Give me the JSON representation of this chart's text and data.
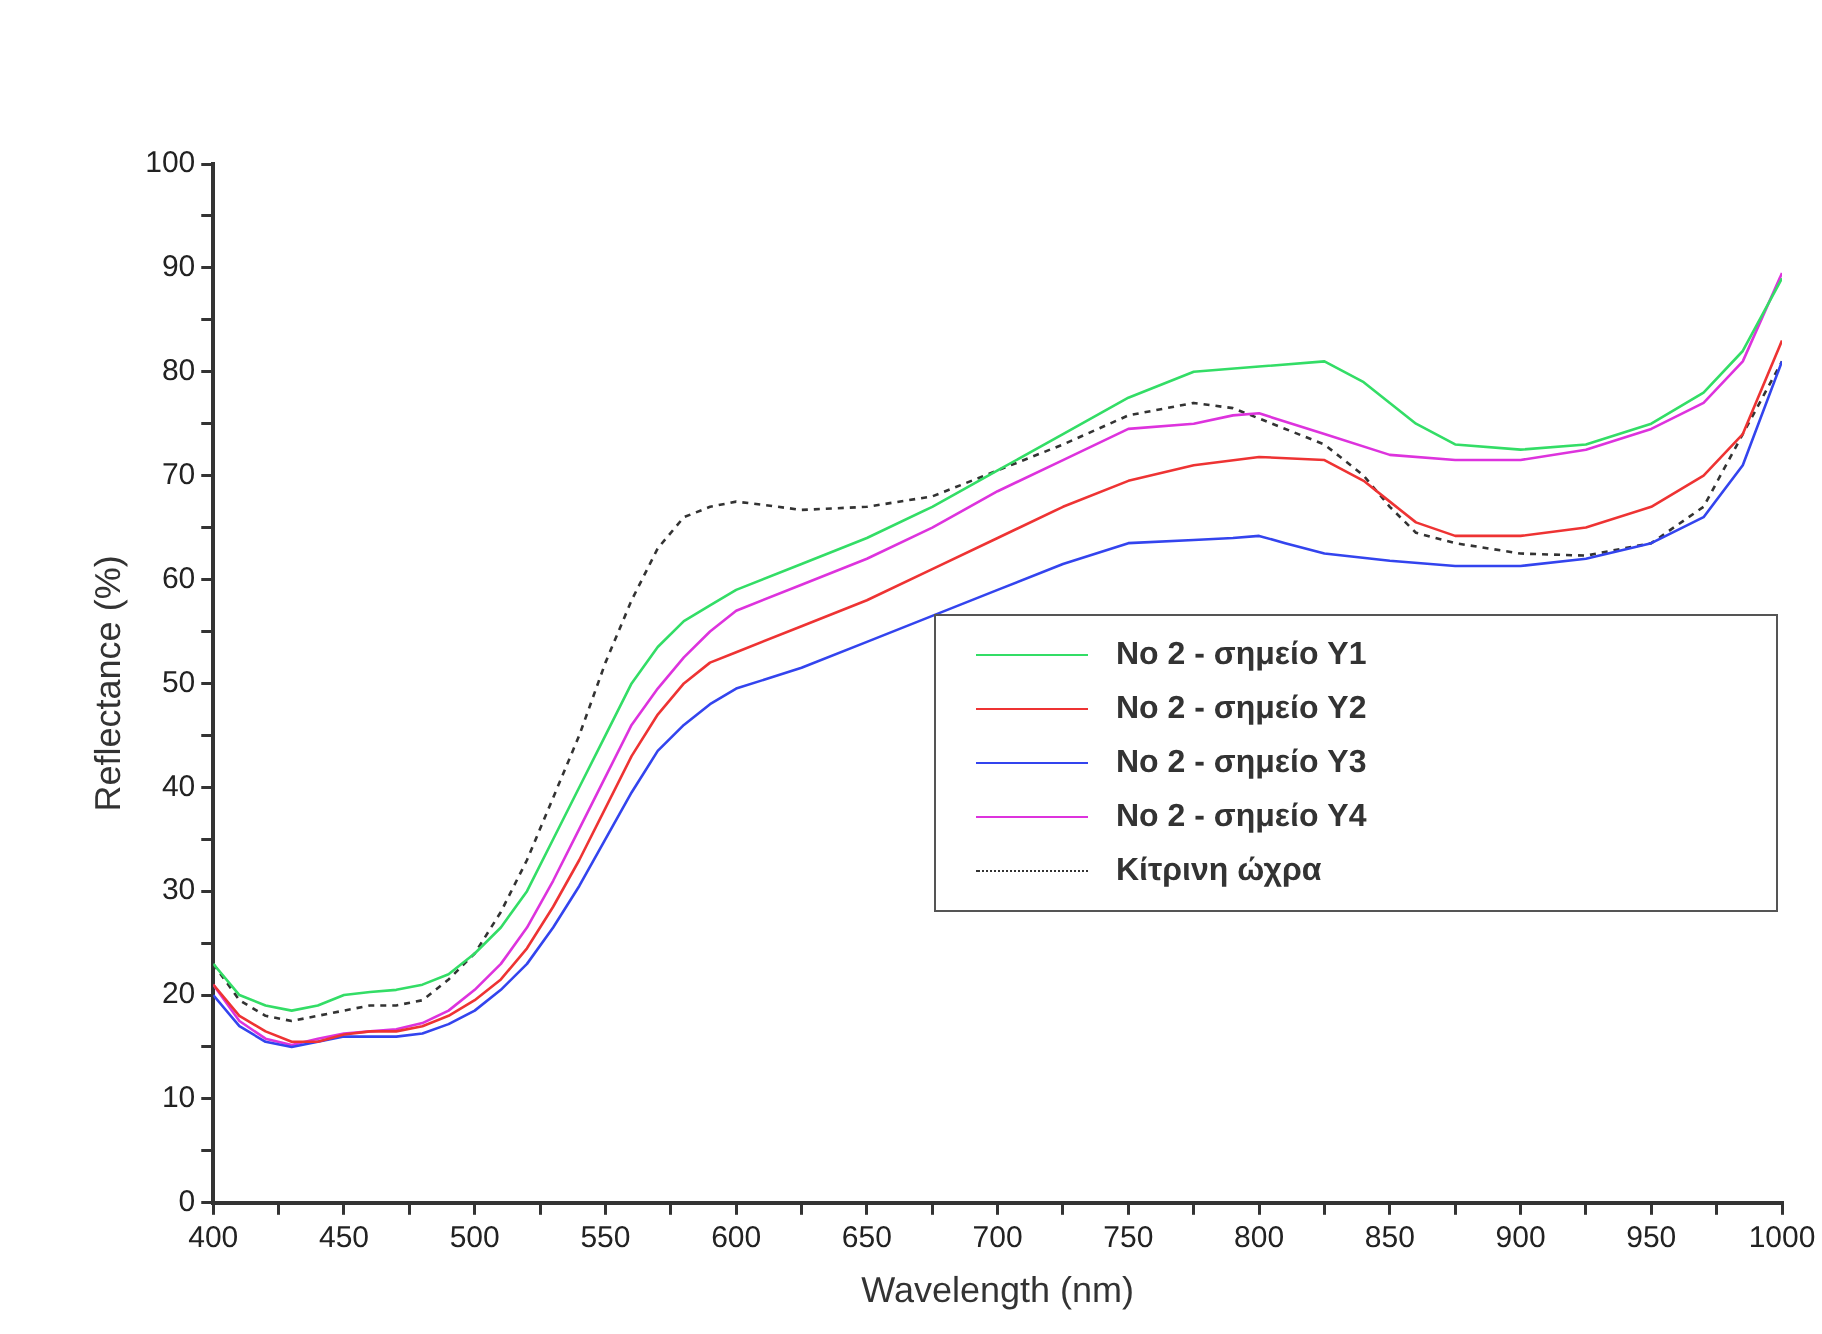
{
  "chart_data": {
    "type": "line",
    "xlabel": "Wavelength (nm)",
    "ylabel": "Reflectance (%)",
    "xlim": [
      400,
      1000
    ],
    "ylim": [
      0,
      100
    ],
    "xticks": [
      400,
      {
        "value": 425,
        "label": null
      },
      450,
      {
        "value": 475,
        "label": null
      },
      500,
      {
        "value": 525,
        "label": null
      },
      550,
      {
        "value": 575,
        "label": null
      },
      600,
      {
        "value": 625,
        "label": null
      },
      650,
      {
        "value": 675,
        "label": null
      },
      700,
      {
        "value": 725,
        "label": null
      },
      750,
      {
        "value": 775,
        "label": null
      },
      800,
      {
        "value": 825,
        "label": null
      },
      850,
      {
        "value": 875,
        "label": null
      },
      900,
      {
        "value": 925,
        "label": null
      },
      950,
      {
        "value": 975,
        "label": null
      },
      1000
    ],
    "yticks": [
      0,
      {
        "value": 5,
        "label": null
      },
      10,
      {
        "value": 15,
        "label": null
      },
      20,
      {
        "value": 25,
        "label": null
      },
      30,
      {
        "value": 35,
        "label": null
      },
      40,
      {
        "value": 45,
        "label": null
      },
      50,
      {
        "value": 55,
        "label": null
      },
      60,
      {
        "value": 65,
        "label": null
      },
      70,
      {
        "value": 75,
        "label": null
      },
      80,
      {
        "value": 85,
        "label": null
      },
      90,
      {
        "value": 95,
        "label": null
      },
      100
    ],
    "grid": false,
    "legend": "right",
    "marker": "none",
    "series": [
      {
        "name": "No 2 - σημείο Y1",
        "color": "#33dd66",
        "line_style": "solid",
        "x": [
          400,
          410,
          420,
          430,
          440,
          450,
          460,
          470,
          480,
          490,
          500,
          510,
          520,
          530,
          540,
          550,
          560,
          570,
          580,
          590,
          600,
          625,
          650,
          675,
          700,
          725,
          750,
          775,
          800,
          825,
          840,
          850,
          860,
          875,
          900,
          925,
          950,
          970,
          985,
          1000
        ],
        "values": [
          23,
          20,
          19,
          18.5,
          19,
          20,
          20.3,
          20.5,
          21,
          22,
          24,
          26.5,
          30,
          35,
          40,
          45,
          50,
          53.5,
          56,
          57.5,
          59,
          61.5,
          64,
          67,
          70.5,
          74,
          77.5,
          80,
          80.5,
          81,
          79,
          77,
          75,
          73,
          72.5,
          73,
          75,
          78,
          82,
          89
        ]
      },
      {
        "name": "No 2 - σημείο Y2",
        "color": "#ee3333",
        "line_style": "solid",
        "x": [
          400,
          410,
          420,
          430,
          440,
          450,
          460,
          470,
          480,
          490,
          500,
          510,
          520,
          530,
          540,
          550,
          560,
          570,
          580,
          590,
          600,
          625,
          650,
          675,
          700,
          725,
          750,
          775,
          800,
          825,
          840,
          850,
          860,
          875,
          900,
          925,
          950,
          970,
          985,
          1000
        ],
        "values": [
          21,
          18,
          16.5,
          15.5,
          15.5,
          16.2,
          16.5,
          16.5,
          17,
          18,
          19.5,
          21.5,
          24.5,
          28.5,
          33,
          38,
          43,
          47,
          50,
          52,
          53,
          55.5,
          58,
          61,
          64,
          67,
          69.5,
          71,
          71.8,
          71.5,
          69.5,
          67.5,
          65.5,
          64.2,
          64.2,
          65,
          67,
          70,
          74,
          83
        ]
      },
      {
        "name": "No 2 - σημείο Y3",
        "color": "#3344ee",
        "line_style": "solid",
        "x": [
          400,
          410,
          420,
          430,
          440,
          450,
          460,
          470,
          480,
          490,
          500,
          510,
          520,
          530,
          540,
          550,
          560,
          570,
          580,
          590,
          600,
          625,
          650,
          675,
          700,
          725,
          750,
          775,
          790,
          800,
          810,
          825,
          850,
          875,
          900,
          925,
          950,
          970,
          985,
          1000
        ],
        "values": [
          20,
          17,
          15.5,
          15,
          15.5,
          16,
          16,
          16,
          16.3,
          17.2,
          18.5,
          20.5,
          23,
          26.5,
          30.5,
          35,
          39.5,
          43.5,
          46,
          48,
          49.5,
          51.5,
          54,
          56.5,
          59,
          61.5,
          63.5,
          63.8,
          64,
          64.2,
          63.5,
          62.5,
          61.8,
          61.3,
          61.3,
          62,
          63.5,
          66,
          71,
          81
        ]
      },
      {
        "name": "No 2 - σημείο Y4",
        "color": "#dd33dd",
        "line_style": "solid",
        "x": [
          400,
          410,
          420,
          430,
          440,
          450,
          460,
          470,
          480,
          490,
          500,
          510,
          520,
          530,
          540,
          550,
          560,
          570,
          580,
          590,
          600,
          625,
          650,
          675,
          700,
          725,
          750,
          775,
          790,
          800,
          825,
          850,
          875,
          900,
          925,
          950,
          970,
          985,
          1000
        ],
        "values": [
          21,
          17.5,
          15.8,
          15.2,
          15.8,
          16.3,
          16.5,
          16.7,
          17.3,
          18.5,
          20.5,
          23,
          26.5,
          31,
          36,
          41,
          46,
          49.5,
          52.5,
          55,
          57,
          59.5,
          62,
          65,
          68.5,
          71.5,
          74.5,
          75,
          75.8,
          76,
          74,
          72,
          71.5,
          71.5,
          72.5,
          74.5,
          77,
          81,
          89.5
        ]
      },
      {
        "name": "Κίτρινη ώχρα",
        "color": "#333333",
        "line_style": "dotted",
        "x": [
          400,
          410,
          420,
          430,
          440,
          450,
          460,
          470,
          480,
          490,
          500,
          510,
          520,
          530,
          540,
          550,
          560,
          570,
          580,
          590,
          600,
          610,
          625,
          650,
          675,
          700,
          725,
          750,
          775,
          790,
          800,
          825,
          840,
          850,
          860,
          875,
          900,
          925,
          950,
          970,
          985,
          1000
        ],
        "values": [
          23,
          19.5,
          18,
          17.5,
          18,
          18.5,
          19,
          19,
          19.5,
          21.5,
          24,
          28,
          33,
          39,
          45,
          52,
          58,
          63,
          66,
          67,
          67.5,
          67.2,
          66.7,
          67,
          68,
          70.5,
          73,
          75.8,
          77,
          76.5,
          75.5,
          73,
          70,
          67,
          64.5,
          63.5,
          62.5,
          62.3,
          63.5,
          67,
          74,
          81
        ]
      }
    ]
  }
}
